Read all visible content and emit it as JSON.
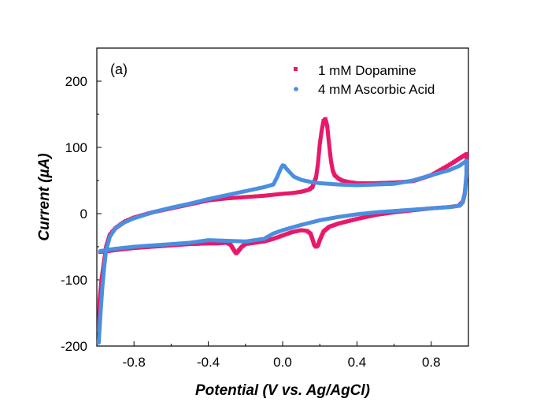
{
  "chart_data": {
    "type": "line",
    "panel_label": "(a)",
    "xlabel": "Potential (V vs. Ag/AgCl)",
    "ylabel": "Current (µA)",
    "xlim": [
      -1.0,
      1.0
    ],
    "ylim": [
      -200,
      250
    ],
    "xticks": [
      -0.8,
      -0.4,
      0.0,
      0.4,
      0.8
    ],
    "xtick_labels": [
      "-0.8",
      "-0.4",
      "0.0",
      "0.4",
      "0.8"
    ],
    "yticks": [
      -200,
      -100,
      0,
      100,
      200
    ],
    "ytick_labels": [
      "-200",
      "-100",
      "0",
      "100",
      "200"
    ],
    "grid": false,
    "legend_position": "top-right",
    "series": [
      {
        "name": "1 mM Dopamine",
        "color": "#e8196a",
        "marker": "square",
        "x": [
          -0.99,
          -0.985,
          -0.975,
          -0.965,
          -0.95,
          -0.93,
          -0.9,
          -0.85,
          -0.8,
          -0.7,
          -0.6,
          -0.5,
          -0.4,
          -0.3,
          -0.2,
          -0.1,
          0.0,
          0.05,
          0.1,
          0.14,
          0.16,
          0.18,
          0.19,
          0.2,
          0.21,
          0.22,
          0.23,
          0.24,
          0.25,
          0.26,
          0.27,
          0.28,
          0.3,
          0.32,
          0.35,
          0.4,
          0.5,
          0.6,
          0.7,
          0.8,
          0.9,
          0.95,
          0.99,
          0.99,
          0.98,
          0.97,
          0.95,
          0.9,
          0.8,
          0.7,
          0.6,
          0.5,
          0.4,
          0.3,
          0.25,
          0.22,
          0.2,
          0.19,
          0.18,
          0.17,
          0.16,
          0.15,
          0.13,
          0.1,
          0.05,
          0.0,
          -0.05,
          -0.1,
          -0.15,
          -0.2,
          -0.22,
          -0.24,
          -0.25,
          -0.26,
          -0.28,
          -0.3,
          -0.35,
          -0.4,
          -0.5,
          -0.6,
          -0.7,
          -0.8,
          -0.9,
          -0.95,
          -0.99
        ],
        "y": [
          -175,
          -130,
          -100,
          -80,
          -50,
          -32,
          -22,
          -12,
          -6,
          2,
          8,
          14,
          20,
          23,
          25,
          27,
          30,
          31,
          33,
          36,
          40,
          55,
          75,
          105,
          125,
          140,
          143,
          132,
          105,
          80,
          65,
          58,
          53,
          50,
          48,
          46,
          46,
          47,
          49,
          58,
          74,
          83,
          90,
          60,
          30,
          18,
          12,
          10,
          8,
          5,
          2,
          -2,
          -8,
          -15,
          -20,
          -27,
          -40,
          -48,
          -50,
          -47,
          -38,
          -30,
          -26,
          -25,
          -28,
          -33,
          -38,
          -42,
          -44,
          -46,
          -50,
          -57,
          -60,
          -56,
          -47,
          -44,
          -45,
          -45,
          -46,
          -48,
          -50,
          -52,
          -55,
          -57,
          -58
        ]
      },
      {
        "name": "4 mM Ascorbic Acid",
        "color": "#4a8fe0",
        "marker": "circle",
        "x": [
          -0.99,
          -0.98,
          -0.97,
          -0.96,
          -0.95,
          -0.93,
          -0.9,
          -0.85,
          -0.8,
          -0.7,
          -0.6,
          -0.5,
          -0.4,
          -0.3,
          -0.2,
          -0.1,
          -0.05,
          -0.03,
          -0.01,
          0.0,
          0.01,
          0.02,
          0.04,
          0.06,
          0.1,
          0.15,
          0.2,
          0.3,
          0.4,
          0.5,
          0.6,
          0.7,
          0.8,
          0.9,
          0.95,
          0.99,
          0.99,
          0.98,
          0.97,
          0.96,
          0.95,
          0.9,
          0.8,
          0.7,
          0.6,
          0.5,
          0.4,
          0.3,
          0.2,
          0.1,
          0.0,
          -0.05,
          -0.1,
          -0.2,
          -0.3,
          -0.4,
          -0.5,
          -0.6,
          -0.7,
          -0.8,
          -0.9,
          -0.95,
          -0.99
        ],
        "y": [
          -195,
          -150,
          -110,
          -80,
          -55,
          -35,
          -22,
          -13,
          -7,
          2,
          9,
          15,
          22,
          28,
          34,
          40,
          44,
          55,
          68,
          73,
          72,
          68,
          62,
          56,
          51,
          48,
          46,
          44,
          43,
          44,
          45,
          50,
          58,
          66,
          72,
          80,
          60,
          30,
          18,
          14,
          12,
          10,
          8,
          6,
          4,
          2,
          -1,
          -5,
          -10,
          -17,
          -25,
          -30,
          -38,
          -42,
          -41,
          -40,
          -44,
          -46,
          -48,
          -50,
          -53,
          -55,
          -57
        ]
      }
    ]
  }
}
